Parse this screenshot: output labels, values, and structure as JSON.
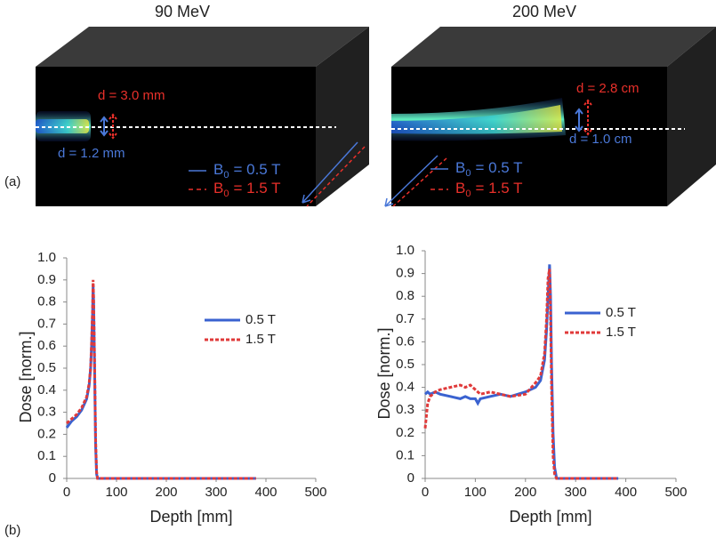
{
  "panel_a": {
    "label": "(a)",
    "images": [
      {
        "title": "90 MeV",
        "annotations": [
          {
            "text": "d = 3.0 mm",
            "color": "#e8302a"
          },
          {
            "text": "d = 1.2 mm",
            "color": "#4a78d8"
          }
        ],
        "legend": [
          {
            "symbol": "B",
            "subscript": "0",
            "rest": "= 0.5 T",
            "color": "#4a78d8"
          },
          {
            "symbol": "B",
            "subscript": "0",
            "rest": "= 1.5 T",
            "color": "#e8302a"
          }
        ]
      },
      {
        "title": "200 MeV",
        "annotations": [
          {
            "text": "d = 2.8 cm",
            "color": "#e8302a"
          },
          {
            "text": "d = 1.0 cm",
            "color": "#4a78d8"
          }
        ],
        "legend": [
          {
            "symbol": "B",
            "subscript": "0",
            "rest": "= 0.5 T",
            "color": "#4a78d8"
          },
          {
            "symbol": "B",
            "subscript": "0",
            "rest": "= 1.5 T",
            "color": "#e8302a"
          }
        ]
      }
    ]
  },
  "panel_b_label": "(b)",
  "chart_data": [
    {
      "type": "line",
      "xlabel": "Depth [mm]",
      "ylabel": "Dose [norm.]",
      "x": [
        0,
        10,
        20,
        30,
        40,
        45,
        48,
        50,
        52,
        53,
        54,
        56,
        58,
        60,
        62,
        100,
        200,
        300,
        380
      ],
      "series": [
        {
          "name": "0.5 T",
          "color": "#3a62d0",
          "dash": false,
          "values": [
            0.23,
            0.26,
            0.28,
            0.31,
            0.36,
            0.42,
            0.5,
            0.6,
            0.75,
            0.88,
            0.8,
            0.5,
            0.15,
            0.02,
            0,
            0,
            0,
            0,
            0
          ]
        },
        {
          "name": "1.5 T",
          "color": "#e03a3a",
          "dash": true,
          "values": [
            0.25,
            0.27,
            0.29,
            0.32,
            0.37,
            0.43,
            0.5,
            0.62,
            0.78,
            0.9,
            0.82,
            0.52,
            0.18,
            0.03,
            0,
            0,
            0,
            0,
            0
          ]
        }
      ],
      "xlim": [
        0,
        500
      ],
      "xticks": [
        0,
        100,
        200,
        300,
        400,
        500
      ],
      "ylim": [
        0,
        1
      ],
      "yticks": [
        0,
        0.1,
        0.2,
        0.3,
        0.4,
        0.5,
        0.6,
        0.7,
        0.8,
        0.9,
        {
          "value": 1,
          "label": "1.0"
        }
      ]
    },
    {
      "type": "line",
      "xlabel": "Depth [mm]",
      "ylabel": "Dose [norm.]",
      "x": [
        0,
        5,
        10,
        20,
        30,
        50,
        70,
        80,
        90,
        100,
        105,
        110,
        130,
        150,
        170,
        200,
        220,
        230,
        238,
        242,
        245,
        248,
        250,
        252,
        255,
        258,
        262,
        300,
        385
      ],
      "series": [
        {
          "name": "0.5 T",
          "color": "#3a62d0",
          "dash": false,
          "values": [
            0.37,
            0.38,
            0.37,
            0.38,
            0.37,
            0.36,
            0.35,
            0.36,
            0.35,
            0.35,
            0.33,
            0.35,
            0.36,
            0.37,
            0.36,
            0.38,
            0.4,
            0.43,
            0.52,
            0.65,
            0.8,
            0.94,
            0.8,
            0.5,
            0.2,
            0.05,
            0,
            0,
            0
          ]
        },
        {
          "name": "1.5 T",
          "color": "#e03a3a",
          "dash": true,
          "values": [
            0.22,
            0.33,
            0.36,
            0.38,
            0.39,
            0.4,
            0.41,
            0.4,
            0.41,
            0.39,
            0.38,
            0.37,
            0.38,
            0.37,
            0.36,
            0.37,
            0.42,
            0.45,
            0.55,
            0.7,
            0.88,
            0.92,
            0.7,
            0.4,
            0.1,
            0.02,
            0,
            0,
            0
          ]
        }
      ],
      "xlim": [
        0,
        500
      ],
      "xticks": [
        0,
        100,
        200,
        300,
        400,
        500
      ],
      "ylim": [
        0,
        1
      ],
      "yticks": [
        0,
        0.1,
        0.2,
        0.3,
        0.4,
        0.5,
        0.6,
        0.7,
        0.8,
        0.9,
        {
          "value": 1,
          "label": "1.0"
        }
      ]
    }
  ]
}
